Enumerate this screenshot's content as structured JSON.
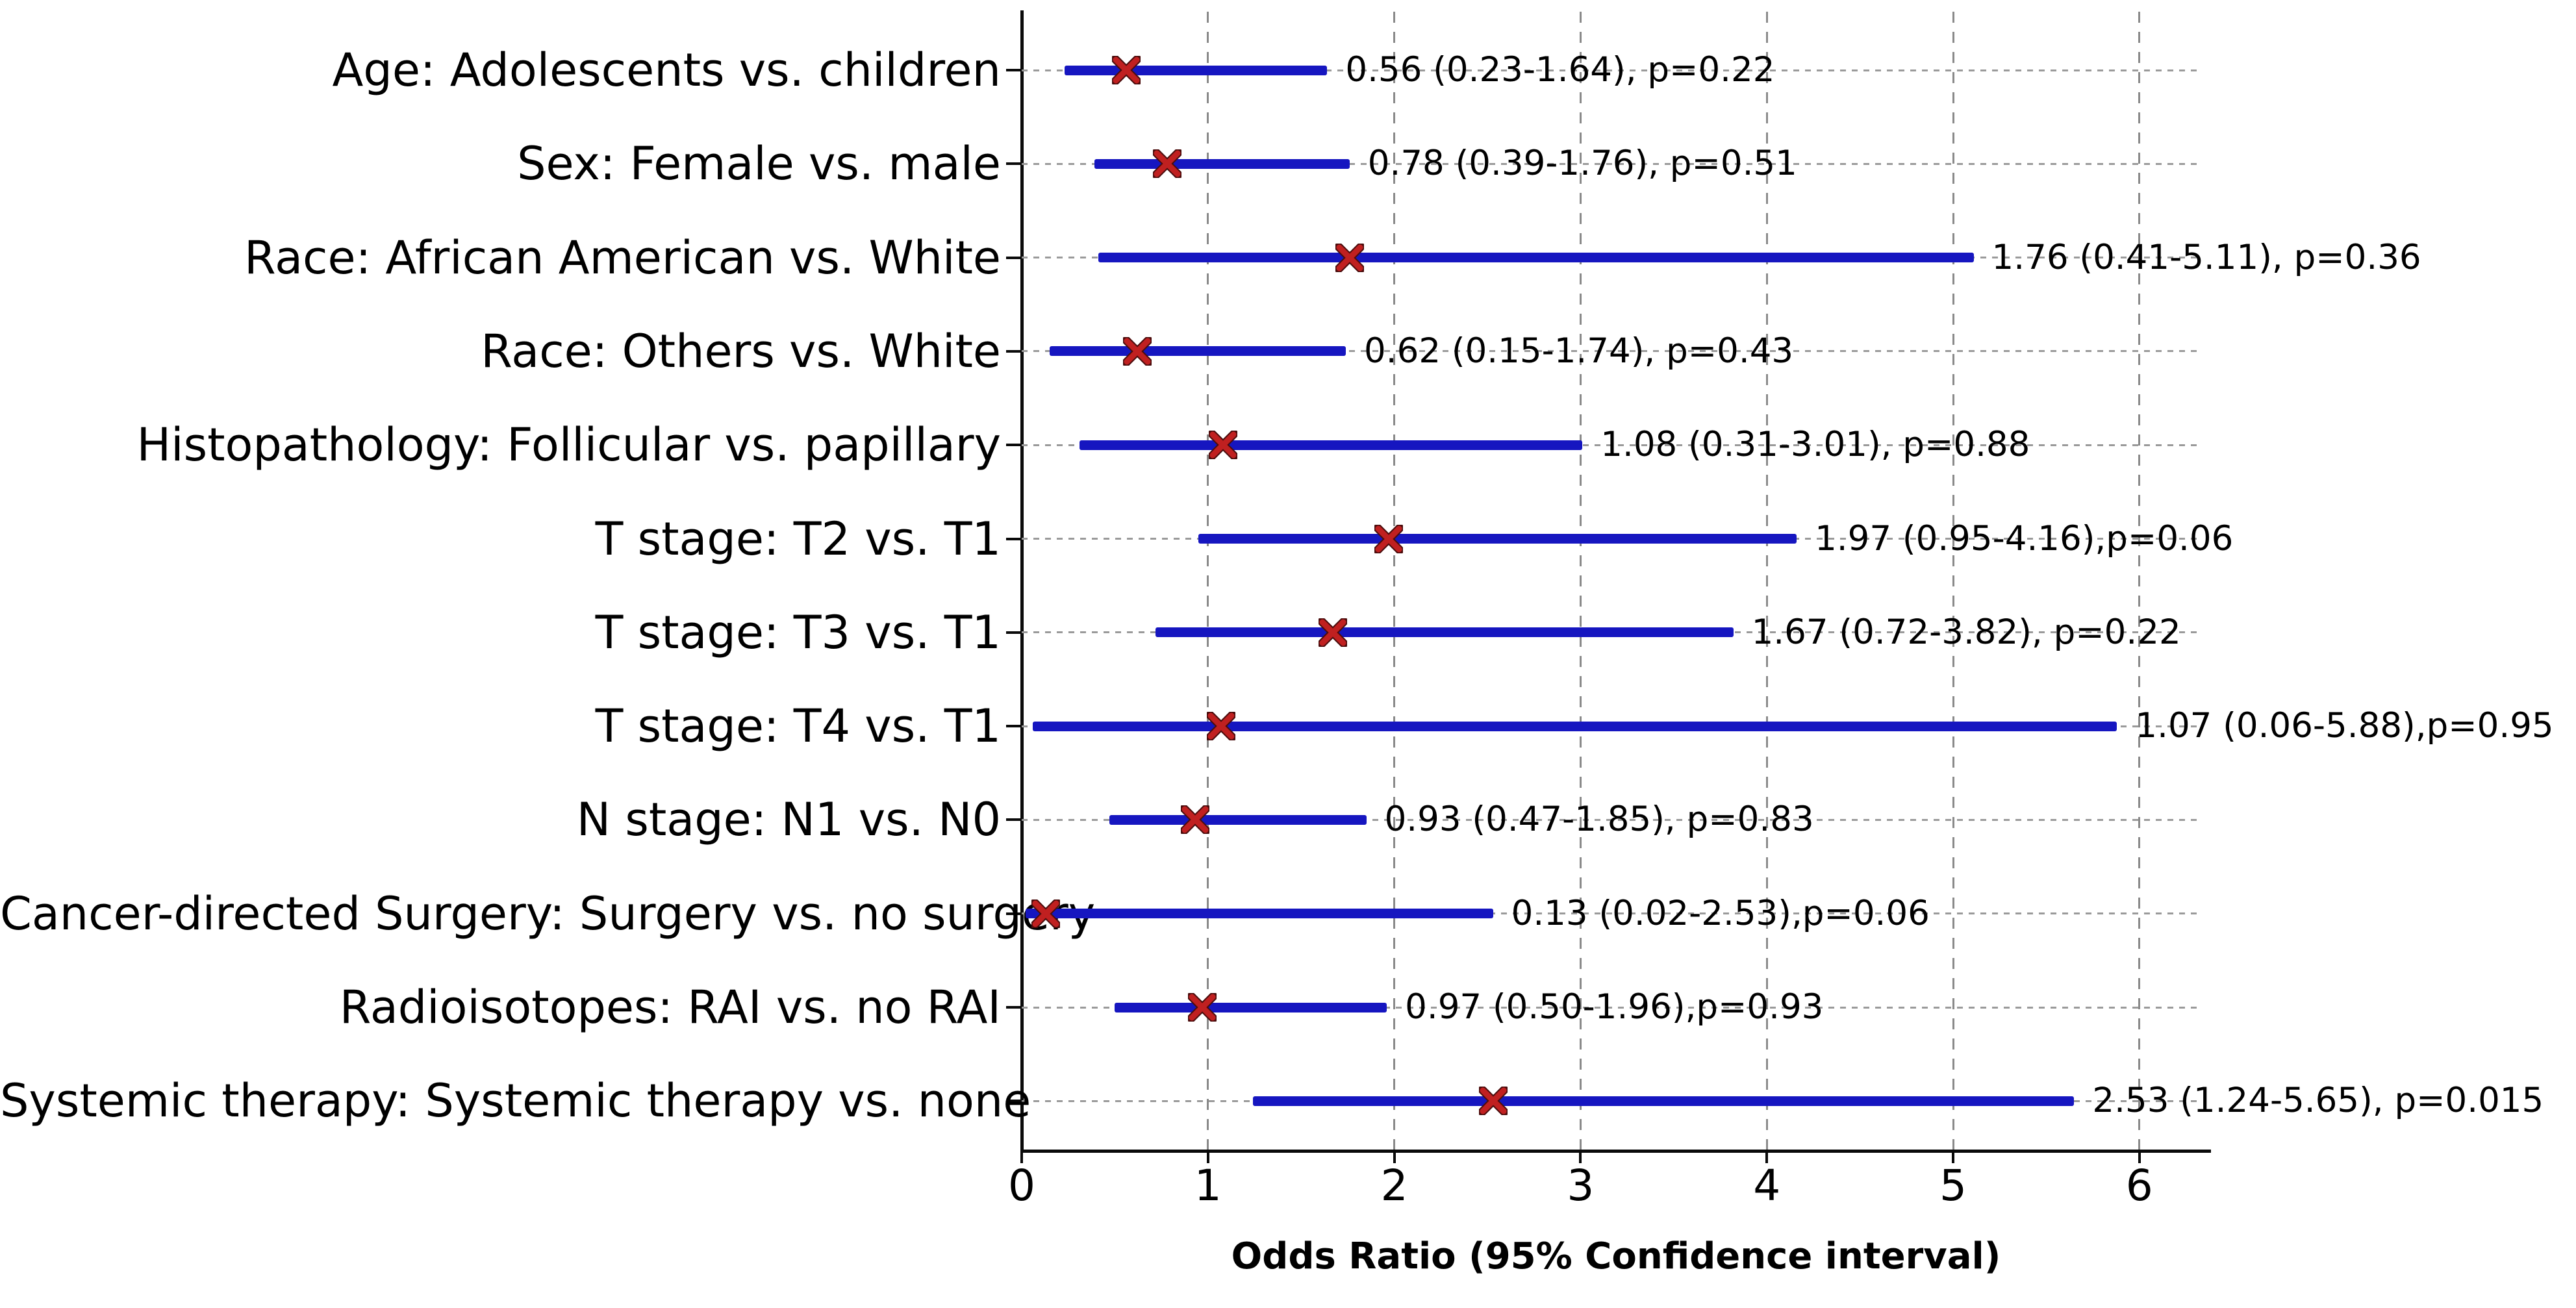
{
  "chart_data": {
    "type": "scatter",
    "subtype": "forest-plot-odds-ratios",
    "title": "",
    "xlabel": "Odds Ratio (95% Confidence interval)",
    "x_ticks": [
      "0",
      "1",
      "2",
      "3",
      "4",
      "5",
      "6"
    ],
    "xlim": [
      0,
      6.4
    ],
    "grid": "horizontal dashed line per row, vertical dashed gridlines at integer ticks",
    "legend_position": "none",
    "marker_shape": "x",
    "rows": [
      {
        "label": "Age: Adolescents vs. children",
        "or": 0.56,
        "ci_low": 0.23,
        "ci_high": 1.64,
        "p": "0.22",
        "annotation": "0.56 (0.23-1.64), p=0.22"
      },
      {
        "label": "Sex: Female vs. male",
        "or": 0.78,
        "ci_low": 0.39,
        "ci_high": 1.76,
        "p": "0.51",
        "annotation": "0.78 (0.39-1.76), p=0.51"
      },
      {
        "label": "Race: African American vs. White",
        "or": 1.76,
        "ci_low": 0.41,
        "ci_high": 5.11,
        "p": "0.36",
        "annotation": "1.76 (0.41-5.11), p=0.36"
      },
      {
        "label": "Race: Others vs. White",
        "or": 0.62,
        "ci_low": 0.15,
        "ci_high": 1.74,
        "p": "0.43",
        "annotation": "0.62 (0.15-1.74), p=0.43"
      },
      {
        "label": "Histopathology: Follicular vs. papillary",
        "or": 1.08,
        "ci_low": 0.31,
        "ci_high": 3.01,
        "p": "0.88",
        "annotation": "1.08 (0.31-3.01), p=0.88"
      },
      {
        "label": "T stage: T2 vs. T1",
        "or": 1.97,
        "ci_low": 0.95,
        "ci_high": 4.16,
        "p": "0.06",
        "annotation": "1.97 (0.95-4.16),p=0.06"
      },
      {
        "label": "T stage: T3 vs. T1",
        "or": 1.67,
        "ci_low": 0.72,
        "ci_high": 3.82,
        "p": "0.22",
        "annotation": "1.67 (0.72-3.82), p=0.22"
      },
      {
        "label": "T stage: T4 vs. T1",
        "or": 1.07,
        "ci_low": 0.06,
        "ci_high": 5.88,
        "p": "0.95",
        "annotation": "1.07 (0.06-5.88),p=0.95"
      },
      {
        "label": "N stage: N1 vs. N0",
        "or": 0.93,
        "ci_low": 0.47,
        "ci_high": 1.85,
        "p": "0.83",
        "annotation": "0.93 (0.47-1.85), p=0.83"
      },
      {
        "label": "Cancer-directed Surgery: Surgery vs. no surgery",
        "or": 0.13,
        "ci_low": 0.02,
        "ci_high": 2.53,
        "p": "0.06",
        "annotation": "0.13 (0.02-2.53),p=0.06"
      },
      {
        "label": "Radioisotopes: RAI vs. no RAI",
        "or": 0.97,
        "ci_low": 0.5,
        "ci_high": 1.96,
        "p": "0.93",
        "annotation": "0.97 (0.50-1.96),p=0.93"
      },
      {
        "label": "Systemic therapy: Systemic therapy vs. none",
        "or": 2.53,
        "ci_low": 1.24,
        "ci_high": 5.65,
        "p": "0.015",
        "annotation": "2.53 (1.24-5.65), p=0.015"
      }
    ],
    "colors": {
      "bar": "#1616c0",
      "marker": "#c02020",
      "marker_edge": "#4a0d0d",
      "axis": "#0a0a0a",
      "grid": "#8a8a8a",
      "text": "#000000"
    }
  }
}
